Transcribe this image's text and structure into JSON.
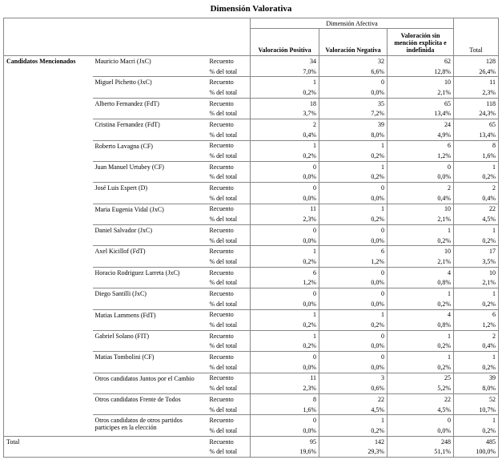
{
  "title": "Dimensión Valorativa",
  "header": {
    "spanner": "Dimensión Afectiva",
    "columns": [
      "Valoración Positiva",
      "Valoración Negativa",
      "Valoración sin mención explícita e indefinida",
      "Total"
    ]
  },
  "row_group_label": "Candidatos Mencionados",
  "stat_labels": [
    "Recuento",
    "% del total"
  ],
  "rows": [
    {
      "name": "Mauricio Macri (JxC)",
      "counts": [
        "34",
        "32",
        "62",
        "128"
      ],
      "percents": [
        "7,0%",
        "6,6%",
        "12,8%",
        "26,4%"
      ]
    },
    {
      "name": "Miguel Pichetto (JxC)",
      "counts": [
        "1",
        "0",
        "10",
        "11"
      ],
      "percents": [
        "0,2%",
        "0,0%",
        "2,1%",
        "2,3%"
      ]
    },
    {
      "name": "Alberto Fernandez (FdT)",
      "counts": [
        "18",
        "35",
        "65",
        "118"
      ],
      "percents": [
        "3,7%",
        "7,2%",
        "13,4%",
        "24,3%"
      ]
    },
    {
      "name": "Cristina Fernandez (FdT)",
      "counts": [
        "2",
        "39",
        "24",
        "65"
      ],
      "percents": [
        "0,4%",
        "8,0%",
        "4,9%",
        "13,4%"
      ]
    },
    {
      "name": "Roberto Lavagna (CF)",
      "counts": [
        "1",
        "1",
        "6",
        "8"
      ],
      "percents": [
        "0,2%",
        "0,2%",
        "1,2%",
        "1,6%"
      ]
    },
    {
      "name": "Juan Manuel Urtubey (CF)",
      "counts": [
        "0",
        "1",
        "0",
        "1"
      ],
      "percents": [
        "0,0%",
        "0,2%",
        "0,0%",
        "0,2%"
      ]
    },
    {
      "name": "José Luis Espert (D)",
      "counts": [
        "0",
        "0",
        "2",
        "2"
      ],
      "percents": [
        "0,0%",
        "0,0%",
        "0,4%",
        "0,4%"
      ]
    },
    {
      "name": "Maria Eugenia Vidal (JxC)",
      "counts": [
        "11",
        "1",
        "10",
        "22"
      ],
      "percents": [
        "2,3%",
        "0,2%",
        "2,1%",
        "4,5%"
      ]
    },
    {
      "name": "Daniel Salvador (JxC)",
      "counts": [
        "0",
        "0",
        "1",
        "1"
      ],
      "percents": [
        "0,0%",
        "0,0%",
        "0,2%",
        "0,2%"
      ]
    },
    {
      "name": "Axel Kicillof (FdT)",
      "counts": [
        "1",
        "6",
        "10",
        "17"
      ],
      "percents": [
        "0,2%",
        "1,2%",
        "2,1%",
        "3,5%"
      ]
    },
    {
      "name": "Horacio Rodriguez Larreta (JxC)",
      "counts": [
        "6",
        "0",
        "4",
        "10"
      ],
      "percents": [
        "1,2%",
        "0,0%",
        "0,8%",
        "2,1%"
      ]
    },
    {
      "name": "Diego Santilli (JxC)",
      "counts": [
        "0",
        "0",
        "1",
        "1"
      ],
      "percents": [
        "0,0%",
        "0,0%",
        "0,2%",
        "0,2%"
      ]
    },
    {
      "name": "Matias Lammens (FdT)",
      "counts": [
        "1",
        "1",
        "4",
        "6"
      ],
      "percents": [
        "0,2%",
        "0,2%",
        "0,8%",
        "1,2%"
      ]
    },
    {
      "name": "Gabriel Solano (FIT)",
      "counts": [
        "1",
        "0",
        "1",
        "2"
      ],
      "percents": [
        "0,2%",
        "0,0%",
        "0,2%",
        "0,4%"
      ]
    },
    {
      "name": "Matias Tombolini (CF)",
      "counts": [
        "0",
        "0",
        "1",
        "1"
      ],
      "percents": [
        "0,0%",
        "0,0%",
        "0,2%",
        "0,2%"
      ]
    },
    {
      "name": "Otros candidatos Juntos por el Cambio",
      "counts": [
        "11",
        "3",
        "25",
        "39"
      ],
      "percents": [
        "2,3%",
        "0,6%",
        "5,2%",
        "8,0%"
      ]
    },
    {
      "name": "Otros candidatos Frente de Todos",
      "counts": [
        "8",
        "22",
        "22",
        "52"
      ],
      "percents": [
        "1,6%",
        "4,5%",
        "4,5%",
        "10,7%"
      ]
    },
    {
      "name": "Otros candidatos de otros partidos participes en la elección",
      "counts": [
        "0",
        "1",
        "0",
        "1"
      ],
      "percents": [
        "0,0%",
        "0,2%",
        "0,0%",
        "0,2%"
      ]
    }
  ],
  "total": {
    "label": "Total",
    "counts": [
      "95",
      "142",
      "248",
      "485"
    ],
    "percents": [
      "19,6%",
      "29,3%",
      "51,1%",
      "100,0%"
    ]
  }
}
